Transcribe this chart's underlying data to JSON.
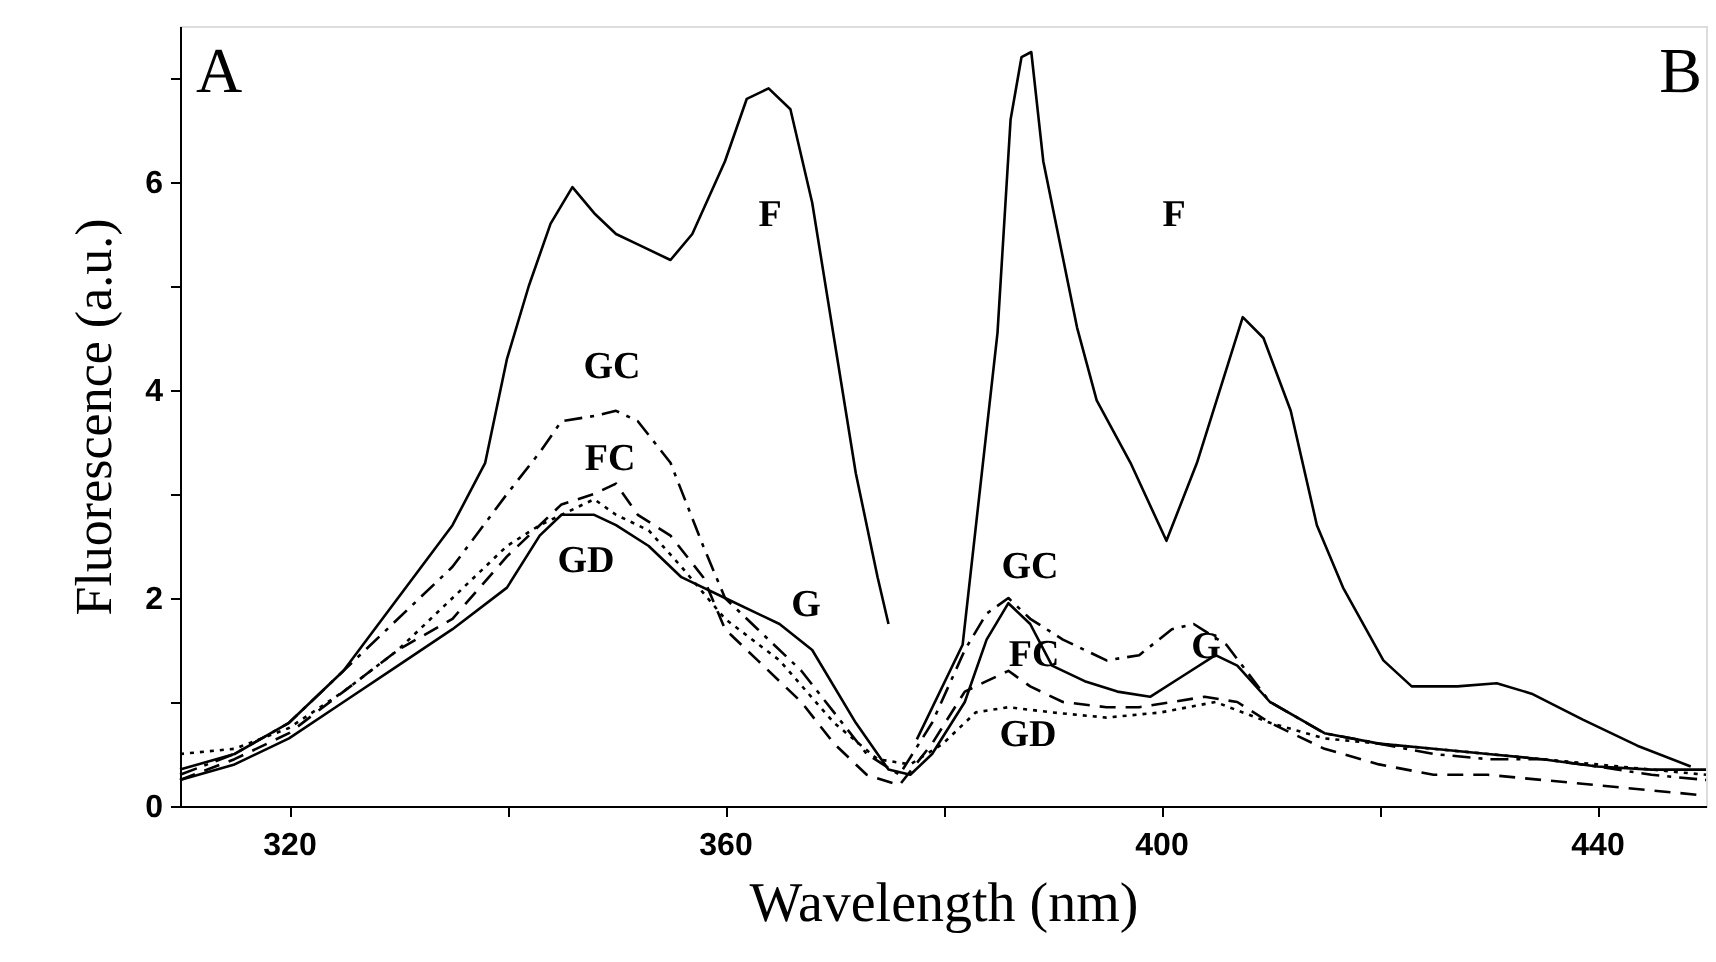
{
  "chart_data": {
    "type": "line",
    "xlabel": "Wavelength (nm)",
    "ylabel": "Fluorescence (a.u.)",
    "xlim": [
      310,
      450
    ],
    "ylim": [
      0,
      7.5
    ],
    "xticks": [
      320,
      {
        "value": 340,
        "label": null
      },
      360,
      {
        "value": 380,
        "label": null
      },
      400,
      {
        "value": 420,
        "label": null
      },
      440
    ],
    "yticks": [
      0,
      {
        "value": 1,
        "label": null
      },
      2,
      {
        "value": 3,
        "label": null
      },
      4,
      {
        "value": 5,
        "label": null
      },
      6,
      {
        "value": 7,
        "label": null
      }
    ],
    "grid": false,
    "marker": "none",
    "series": [
      {
        "color": "#000000",
        "line_style": "solid",
        "x": [
          310,
          315,
          320,
          325,
          330,
          335,
          338,
          340,
          342,
          344,
          346,
          348,
          350,
          352,
          355,
          357,
          360,
          362,
          364,
          366,
          368,
          370,
          372,
          374,
          375,
          376.5,
          377.6,
          381.8,
          385,
          386.2,
          387.2,
          388.1,
          389.2,
          392.3,
          394.1,
          397.2,
          400.5,
          403.3,
          407.5,
          409.4,
          411.9,
          414.3,
          416.7,
          420.4,
          423,
          427.2,
          430.8,
          434,
          438.7,
          443.7,
          448.6
        ],
        "values": [
          0.35,
          0.5,
          0.8,
          1.3,
          2.0,
          2.7,
          3.3,
          4.3,
          5.0,
          5.6,
          5.95,
          5.7,
          5.5,
          5.4,
          5.25,
          5.5,
          6.2,
          6.8,
          6.9,
          6.7,
          5.8,
          4.5,
          3.2,
          2.2,
          1.75,
          null,
          0.64,
          1.55,
          4.55,
          6.6,
          7.2,
          7.25,
          6.2,
          4.6,
          3.9,
          3.3,
          2.55,
          3.3,
          4.7,
          4.5,
          3.8,
          2.7,
          2.1,
          1.4,
          1.15,
          1.15,
          1.18,
          1.08,
          0.83,
          0.58,
          0.38
        ]
      },
      {
        "color": "#000000",
        "line_style": "solid",
        "x": [
          310,
          315,
          320,
          325,
          330,
          335,
          340,
          343,
          345,
          348,
          350,
          353,
          356,
          360,
          365,
          368,
          372,
          375,
          377,
          379,
          382,
          384,
          386,
          388,
          390,
          393,
          396,
          399,
          402,
          405,
          407,
          410,
          415,
          420,
          425,
          430,
          435,
          440,
          445,
          450
        ],
        "values": [
          0.25,
          0.4,
          0.65,
          1.0,
          1.35,
          1.7,
          2.1,
          2.6,
          2.8,
          2.8,
          2.7,
          2.5,
          2.2,
          2.0,
          1.75,
          1.5,
          0.8,
          0.35,
          0.3,
          0.5,
          1.0,
          1.6,
          1.95,
          1.75,
          1.35,
          1.2,
          1.1,
          1.05,
          1.25,
          1.45,
          1.35,
          1.0,
          0.7,
          0.6,
          0.55,
          0.5,
          0.45,
          0.38,
          0.35,
          0.35
        ]
      },
      {
        "color": "#000000",
        "line_style": "dashdot",
        "x": [
          310,
          315,
          320,
          325,
          330,
          335,
          340,
          343,
          345,
          348,
          350,
          352,
          355,
          358,
          360,
          363,
          367,
          370,
          373,
          376,
          379,
          382,
          384,
          386,
          388,
          391,
          395,
          398,
          401,
          403,
          406,
          410,
          415,
          420,
          425,
          430,
          435,
          440,
          445,
          450
        ],
        "values": [
          0.3,
          0.5,
          0.8,
          1.3,
          1.8,
          2.3,
          3.0,
          3.4,
          3.7,
          3.75,
          3.8,
          3.7,
          3.3,
          2.5,
          2.0,
          1.7,
          1.3,
          0.9,
          0.5,
          0.3,
          0.8,
          1.5,
          1.85,
          2.0,
          1.8,
          1.6,
          1.4,
          1.45,
          1.7,
          1.75,
          1.55,
          1.0,
          0.7,
          0.6,
          0.5,
          0.45,
          0.45,
          0.38,
          0.3,
          0.25
        ]
      },
      {
        "color": "#000000",
        "line_style": "dashed",
        "x": [
          310,
          315,
          320,
          325,
          330,
          335,
          340,
          343,
          345,
          348,
          350,
          352,
          355,
          358,
          360,
          363,
          367,
          370,
          373,
          376,
          379,
          382,
          384,
          386,
          388,
          391,
          395,
          398,
          401,
          404,
          407,
          410,
          415,
          420,
          425,
          430,
          435,
          440,
          445,
          450
        ],
        "values": [
          0.25,
          0.45,
          0.7,
          1.1,
          1.5,
          1.8,
          2.4,
          2.7,
          2.9,
          3.0,
          3.1,
          2.8,
          2.6,
          2.2,
          1.7,
          1.4,
          1.0,
          0.6,
          0.3,
          0.2,
          0.6,
          1.1,
          1.2,
          1.3,
          1.15,
          1.0,
          0.95,
          0.95,
          1.0,
          1.05,
          1.0,
          0.8,
          0.55,
          0.4,
          0.3,
          0.3,
          0.25,
          0.2,
          0.15,
          0.1
        ]
      },
      {
        "color": "#000000",
        "line_style": "dotted",
        "x": [
          310,
          315,
          320,
          325,
          330,
          335,
          340,
          343,
          345,
          348,
          350,
          353,
          356,
          360,
          365,
          370,
          374,
          377,
          380,
          383,
          386,
          390,
          395,
          400,
          405,
          410,
          415,
          420,
          425,
          430,
          435,
          440,
          445,
          450
        ],
        "values": [
          0.5,
          0.55,
          0.75,
          1.1,
          1.5,
          2.0,
          2.5,
          2.7,
          2.8,
          2.95,
          2.8,
          2.65,
          2.3,
          1.8,
          1.4,
          0.8,
          0.45,
          0.4,
          0.6,
          0.9,
          0.95,
          0.9,
          0.85,
          0.9,
          1.0,
          0.8,
          0.65,
          0.6,
          0.55,
          0.5,
          0.45,
          0.4,
          0.35,
          0.3
        ]
      }
    ],
    "annotations": [
      "A",
      "B",
      "F",
      "F",
      "GC",
      "FC",
      "GD",
      "G",
      "GC",
      "FC",
      "GD",
      "G"
    ]
  }
}
